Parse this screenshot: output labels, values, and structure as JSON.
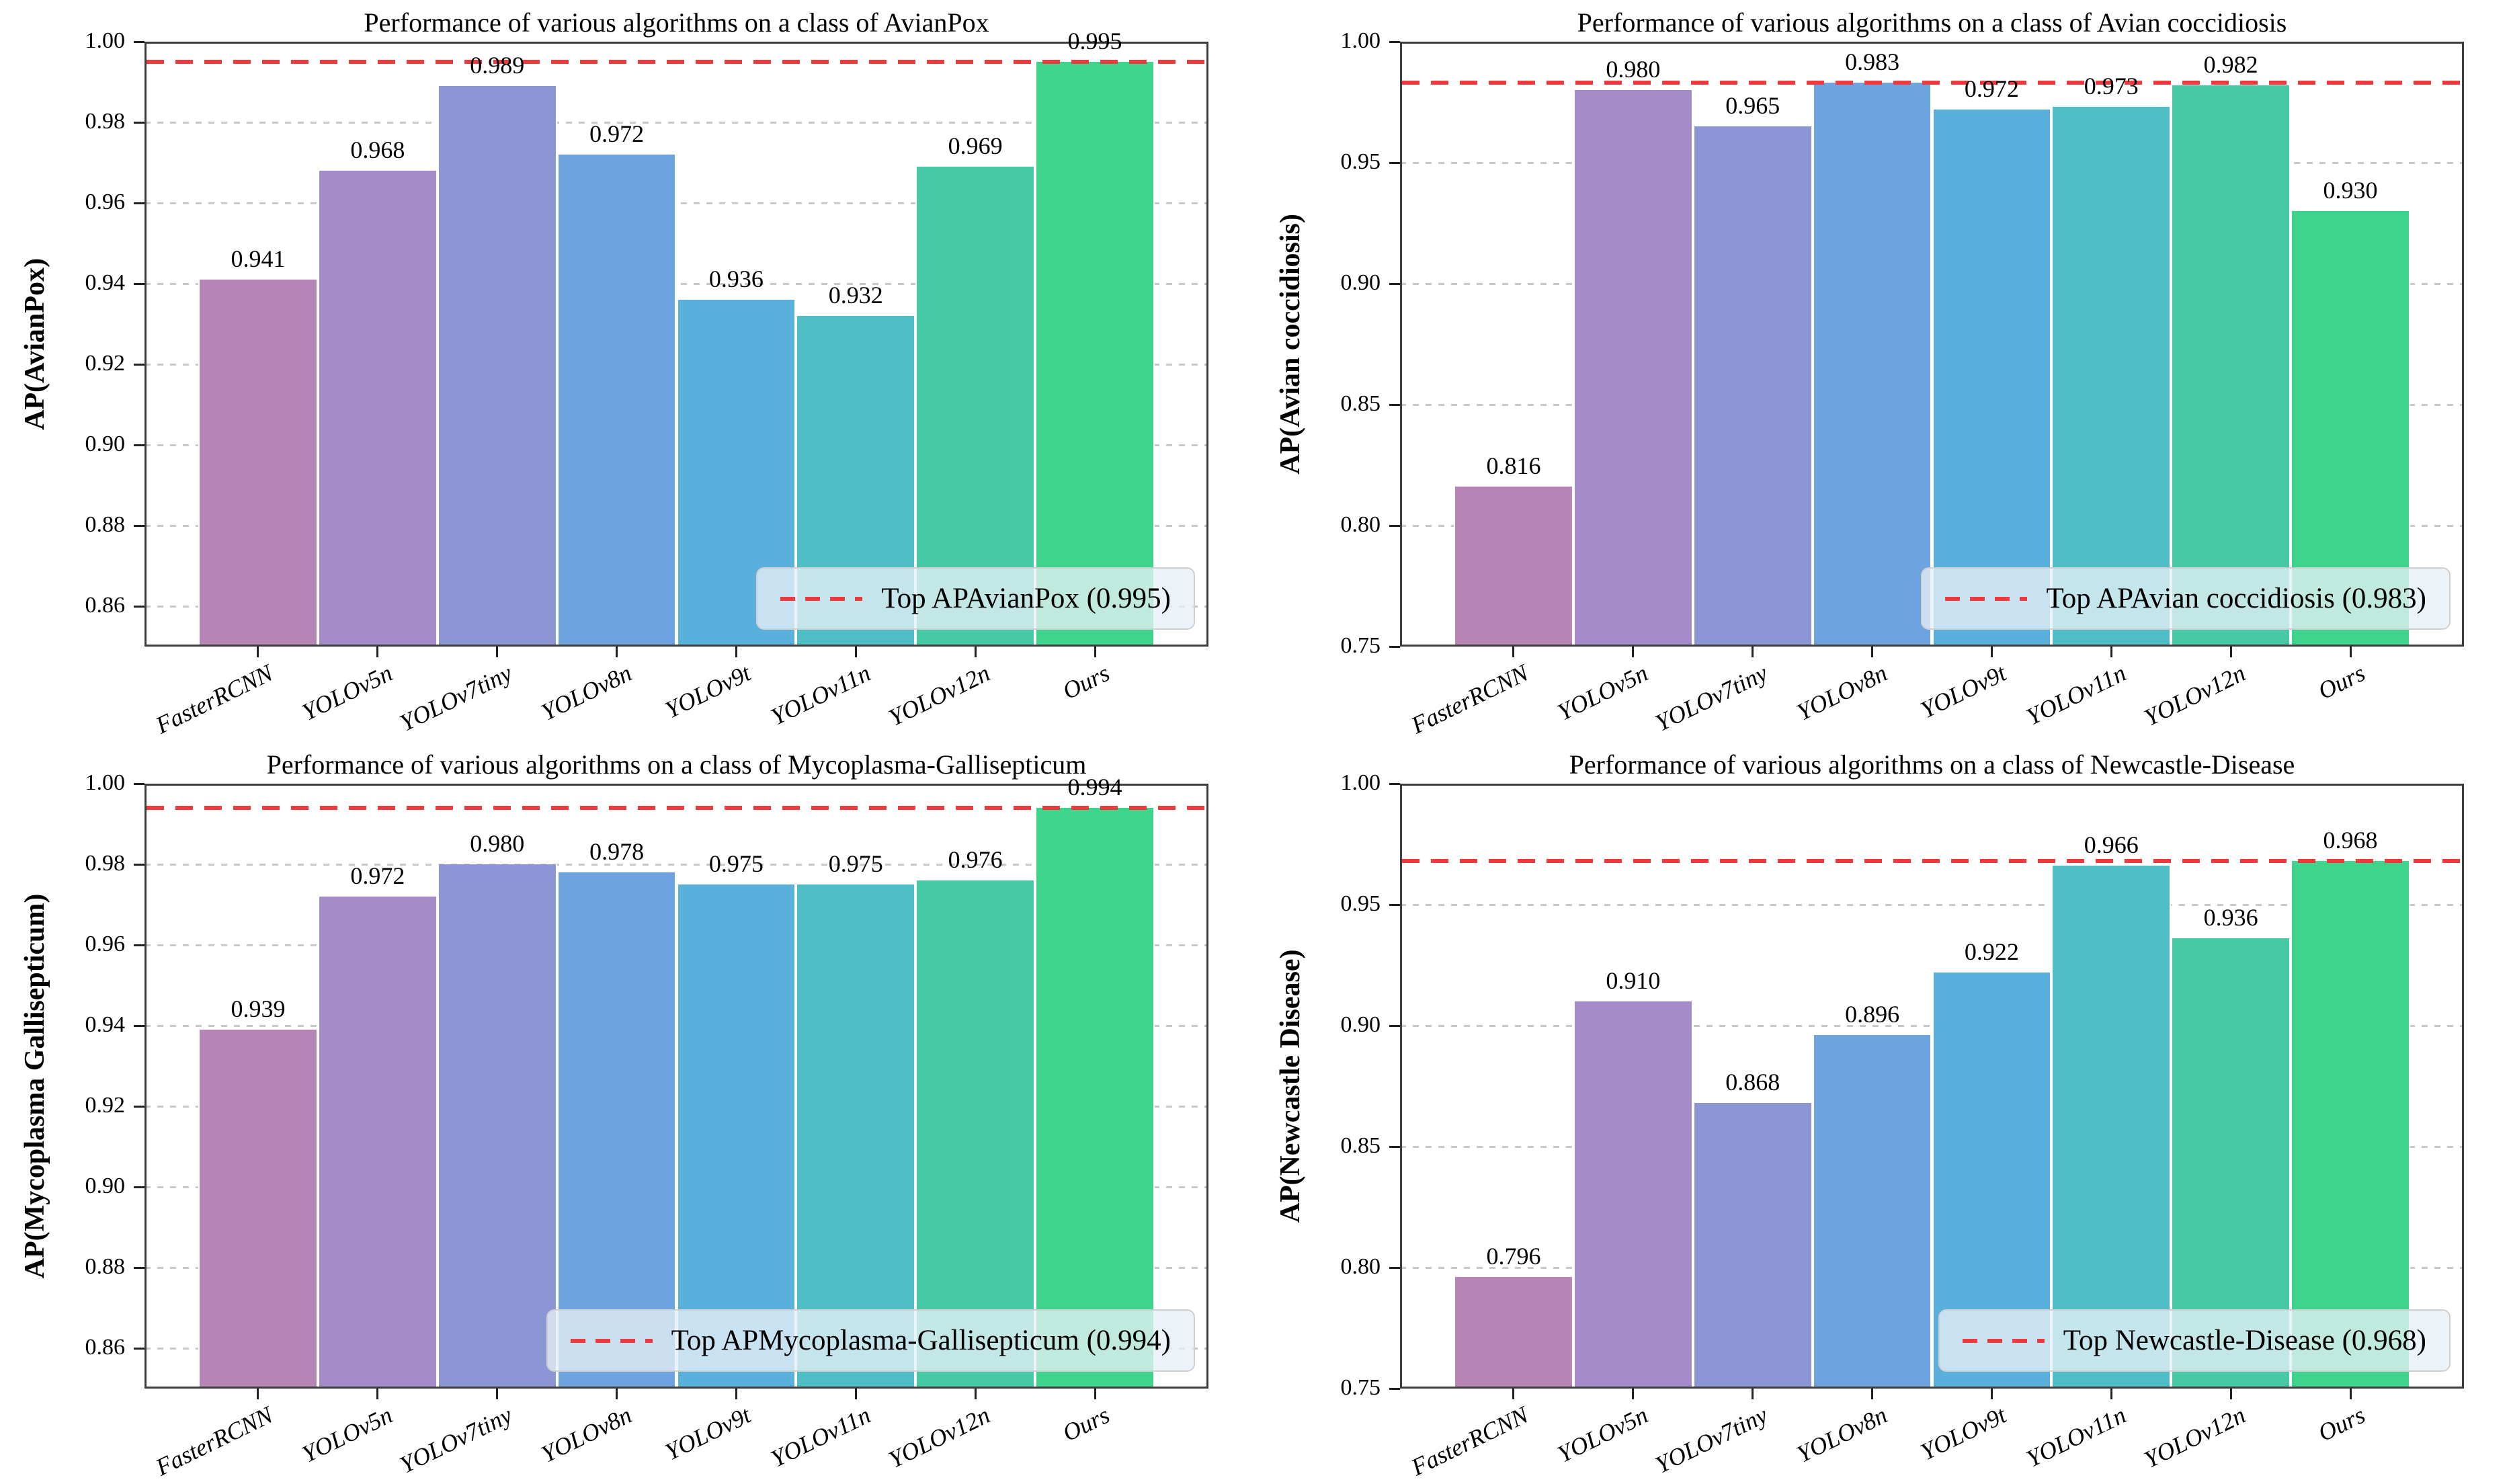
{
  "figure": {
    "background": "#ffffff",
    "axis_color": "#3c3c3c",
    "grid_color": "#c9c9c9",
    "top_line_color": "#ee3a3c",
    "legend_background": "#e7f0f6",
    "bar_colors": [
      "#b685b5",
      "#a38cc9",
      "#8d96d5",
      "#6da3de",
      "#5ab0dd",
      "#4ebdc6",
      "#47c9a5",
      "#3ed48c"
    ]
  },
  "chart_data": [
    {
      "type": "bar",
      "title": "Performance of various algorithms on a class of AvianPox",
      "ylabel": "AP(AvianPox)",
      "categories": [
        "FasterRCNN",
        "YOLOv5n",
        "YOLOv7tiny",
        "YOLOv8n",
        "YOLOv9t",
        "YOLOv11n",
        "YOLOv12n",
        "Ours"
      ],
      "values": [
        0.941,
        0.968,
        0.989,
        0.972,
        0.936,
        0.932,
        0.969,
        0.995
      ],
      "value_labels": [
        "0.941",
        "0.968",
        "0.989",
        "0.972",
        "0.936",
        "0.932",
        "0.969",
        "0.995"
      ],
      "ylim": [
        0.85,
        1.0
      ],
      "yticks": [
        0.86,
        0.88,
        0.9,
        0.92,
        0.94,
        0.96,
        0.98,
        1.0
      ],
      "ytick_labels": [
        "0.86",
        "0.88",
        "0.90",
        "0.92",
        "0.94",
        "0.96",
        "0.98",
        "1.00"
      ],
      "grid": "horizontal-dotted",
      "top_line_value": 0.995,
      "legend_label": "Top APAvianPox (0.995)",
      "legend_position": "lower right"
    },
    {
      "type": "bar",
      "title": "Performance of various algorithms on a class of Avian coccidiosis",
      "ylabel": "AP(Avian coccidiosis)",
      "categories": [
        "FasterRCNN",
        "YOLOv5n",
        "YOLOv7tiny",
        "YOLOv8n",
        "YOLOv9t",
        "YOLOv11n",
        "YOLOv12n",
        "Ours"
      ],
      "values": [
        0.816,
        0.98,
        0.965,
        0.983,
        0.972,
        0.973,
        0.982,
        0.93
      ],
      "value_labels": [
        "0.816",
        "0.980",
        "0.965",
        "0.983",
        "0.972",
        "0.973",
        "0.982",
        "0.930"
      ],
      "ylim": [
        0.75,
        1.0
      ],
      "yticks": [
        0.75,
        0.8,
        0.85,
        0.9,
        0.95,
        1.0
      ],
      "ytick_labels": [
        "0.75",
        "0.80",
        "0.85",
        "0.90",
        "0.95",
        "1.00"
      ],
      "grid": "horizontal-dotted",
      "top_line_value": 0.983,
      "legend_label": "Top APAvian coccidiosis (0.983)",
      "legend_position": "lower right"
    },
    {
      "type": "bar",
      "title": "Performance of various algorithms on a class of Mycoplasma-Gallisepticum",
      "ylabel": "AP(Mycoplasma Gallisepticum)",
      "categories": [
        "FasterRCNN",
        "YOLOv5n",
        "YOLOv7tiny",
        "YOLOv8n",
        "YOLOv9t",
        "YOLOv11n",
        "YOLOv12n",
        "Ours"
      ],
      "values": [
        0.939,
        0.972,
        0.98,
        0.978,
        0.975,
        0.975,
        0.976,
        0.994
      ],
      "value_labels": [
        "0.939",
        "0.972",
        "0.980",
        "0.978",
        "0.975",
        "0.975",
        "0.976",
        "0.994"
      ],
      "ylim": [
        0.85,
        1.0
      ],
      "yticks": [
        0.86,
        0.88,
        0.9,
        0.92,
        0.94,
        0.96,
        0.98,
        1.0
      ],
      "ytick_labels": [
        "0.86",
        "0.88",
        "0.90",
        "0.92",
        "0.94",
        "0.96",
        "0.98",
        "1.00"
      ],
      "grid": "horizontal-dotted",
      "top_line_value": 0.994,
      "legend_label": "Top APMycoplasma-Gallisepticum (0.994)",
      "legend_position": "lower right"
    },
    {
      "type": "bar",
      "title": "Performance of various algorithms on a class of Newcastle-Disease",
      "ylabel": "AP(Newcastle Disease)",
      "categories": [
        "FasterRCNN",
        "YOLOv5n",
        "YOLOv7tiny",
        "YOLOv8n",
        "YOLOv9t",
        "YOLOv11n",
        "YOLOv12n",
        "Ours"
      ],
      "values": [
        0.796,
        0.91,
        0.868,
        0.896,
        0.922,
        0.966,
        0.936,
        0.968
      ],
      "value_labels": [
        "0.796",
        "0.910",
        "0.868",
        "0.896",
        "0.922",
        "0.966",
        "0.936",
        "0.968"
      ],
      "ylim": [
        0.75,
        1.0
      ],
      "yticks": [
        0.75,
        0.8,
        0.85,
        0.9,
        0.95,
        1.0
      ],
      "ytick_labels": [
        "0.75",
        "0.80",
        "0.85",
        "0.90",
        "0.95",
        "1.00"
      ],
      "grid": "horizontal-dotted",
      "top_line_value": 0.968,
      "legend_label": "Top Newcastle-Disease (0.968)",
      "legend_position": "lower right"
    }
  ]
}
